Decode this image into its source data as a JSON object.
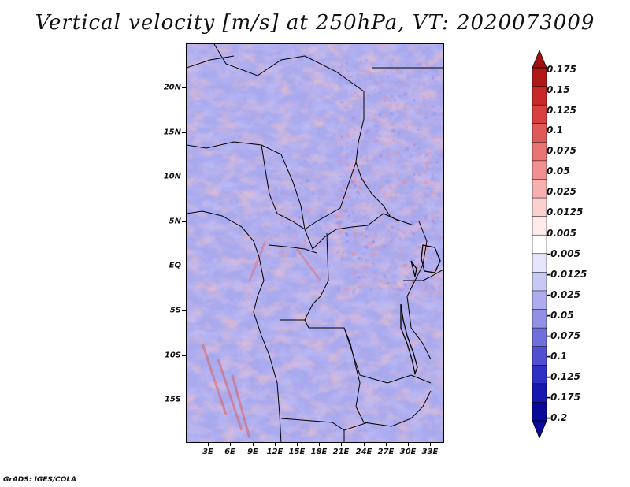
{
  "title": "Vertical velocity [m/s] at 250hPa, VT: 2020073009",
  "footer": "GrADS: IGES/COLA",
  "map": {
    "lat_labels": [
      "20N",
      "15N",
      "10N",
      "5N",
      "EQ",
      "5S",
      "10S",
      "15S"
    ],
    "lon_labels": [
      "3E",
      "6E",
      "9E",
      "12E",
      "15E",
      "18E",
      "21E",
      "24E",
      "27E",
      "30E",
      "33E"
    ]
  },
  "colorbar": {
    "labels": [
      "0.175",
      "0.15",
      "0.125",
      "0.1",
      "0.075",
      "0.05",
      "0.025",
      "0.0125",
      "0.005",
      "-0.005",
      "-0.0125",
      "-0.025",
      "-0.05",
      "-0.075",
      "-0.1",
      "-0.125",
      "-0.175",
      "-0.2"
    ],
    "colors": [
      "#b01818",
      "#c82828",
      "#d84040",
      "#e05858",
      "#e87474",
      "#f09090",
      "#f6b0b0",
      "#fad0d0",
      "#fdeaea",
      "#ffffff",
      "#e4e4fa",
      "#c8c8f4",
      "#acacee",
      "#9090e4",
      "#7070dc",
      "#5050d0",
      "#3030c4",
      "#1818b0",
      "#0a0a98"
    ]
  },
  "chart_data": {
    "type": "heatmap",
    "title": "Vertical velocity [m/s] at 250hPa, VT: 2020073009",
    "variable": "Vertical velocity",
    "units": "m/s",
    "level": "250hPa",
    "valid_time": "2020073009",
    "x_ticks": [
      "3E",
      "6E",
      "9E",
      "12E",
      "15E",
      "18E",
      "21E",
      "24E",
      "27E",
      "30E",
      "33E"
    ],
    "y_ticks": [
      "20N",
      "15N",
      "10N",
      "5N",
      "EQ",
      "5S",
      "10S",
      "15S"
    ],
    "lon_range": [
      0,
      34.5
    ],
    "lat_range": [
      -20,
      24.5
    ],
    "contour_levels": [
      -0.2,
      -0.175,
      -0.125,
      -0.1,
      -0.075,
      -0.05,
      -0.025,
      -0.0125,
      -0.005,
      0.005,
      0.0125,
      0.025,
      0.05,
      0.075,
      0.1,
      0.125,
      0.15,
      0.175
    ]
  }
}
